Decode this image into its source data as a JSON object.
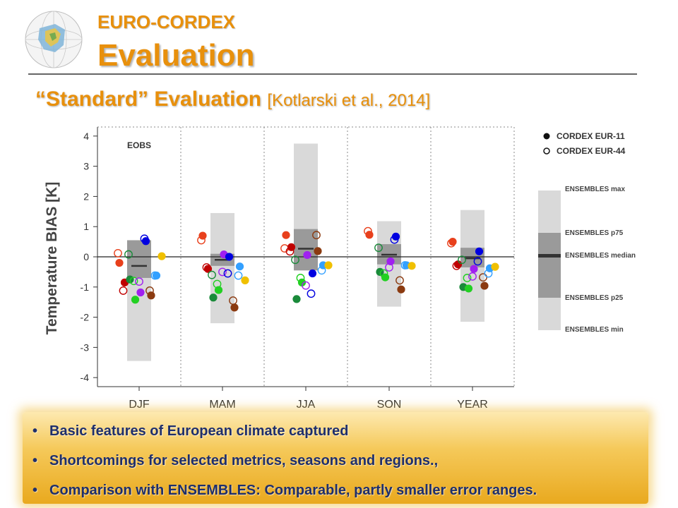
{
  "header": {
    "kicker": "EURO-CORDEX",
    "title": "Evaluation",
    "subtitle_main": "“Standard” Evaluation ",
    "subtitle_ref": "[Kotlarski et al., 2014]"
  },
  "legend": {
    "filled_label": "CORDEX EUR-11",
    "open_label": "CORDEX EUR-44",
    "ens_max": "ENSEMBLES max",
    "ens_p75": "ENSEMBLES p75",
    "ens_median": "ENSEMBLES median",
    "ens_p25": "ENSEMBLES p25",
    "ens_min": "ENSEMBLES min"
  },
  "bullets": {
    "items": [
      "Basic features of European climate captured",
      "Shortcomings for selected metrics, seasons and regions.,",
      "Comparison with ENSEMBLES: Comparable, partly smaller error ranges."
    ]
  },
  "colors": {
    "accent": "#e8900c",
    "bullet_text": "#1f2f6b",
    "ens_light": "#d9d9d9",
    "ens_dark": "#9a9a9a",
    "median": "#333333"
  },
  "chart_data": {
    "type": "scatter",
    "ylabel": "Temperature BIAS [K]",
    "inset_label": "EOBS",
    "ylim": [
      -4.3,
      4.3
    ],
    "yticks": [
      4,
      3,
      2,
      1,
      0,
      -1,
      -2,
      -3,
      -4
    ],
    "categories": [
      "DJF",
      "MAM",
      "JJA",
      "SON",
      "YEAR"
    ],
    "ensembles": [
      {
        "min": -3.45,
        "p25": -0.7,
        "median": -0.3,
        "p75": 0.55,
        "max": 0.55
      },
      {
        "min": -2.2,
        "p25": -0.3,
        "median": -0.1,
        "p75": 0.1,
        "max": 1.45
      },
      {
        "min": -0.45,
        "p25": -0.45,
        "median": 0.27,
        "p75": 0.92,
        "max": 3.75
      },
      {
        "min": -1.65,
        "p25": -0.25,
        "median": 0.07,
        "p75": 0.42,
        "max": 1.18
      },
      {
        "min": -2.15,
        "p25": -0.35,
        "median": -0.05,
        "p75": 0.3,
        "max": 1.55
      }
    ],
    "series": [
      {
        "color": "#e8401c",
        "eur11": [
          -0.2,
          0.7,
          0.72,
          0.73,
          0.5
        ],
        "eur44": [
          0.12,
          0.55,
          0.28,
          0.85,
          0.45
        ]
      },
      {
        "color": "#c00000",
        "eur11": [
          -0.85,
          -0.4,
          0.32,
          null,
          -0.25
        ],
        "eur44": [
          -1.12,
          -0.35,
          0.18,
          null,
          -0.3
        ]
      },
      {
        "color": "#1a8a3a",
        "eur11": [
          -0.75,
          -1.35,
          -1.4,
          -0.5,
          -1.0
        ],
        "eur44": [
          0.08,
          -0.6,
          -0.1,
          0.3,
          -0.1
        ]
      },
      {
        "color": "#22d022",
        "eur11": [
          -1.42,
          -1.1,
          -0.85,
          -0.68,
          -1.05
        ],
        "eur44": [
          -0.8,
          -0.9,
          -0.7,
          -0.55,
          -0.7
        ]
      },
      {
        "color": "#a020f0",
        "eur11": [
          -1.18,
          0.08,
          0.06,
          -0.15,
          -0.4
        ],
        "eur44": [
          -0.82,
          -0.5,
          -0.95,
          -0.35,
          -0.65
        ]
      },
      {
        "color": "#0000e0",
        "eur11": [
          0.52,
          0.0,
          -0.55,
          0.67,
          0.18
        ],
        "eur44": [
          0.6,
          -0.55,
          -1.22,
          0.57,
          -0.15
        ]
      },
      {
        "color": "#8b3a10",
        "eur11": [
          -1.28,
          -1.68,
          0.19,
          -1.08,
          -0.96
        ],
        "eur44": [
          -1.12,
          -1.45,
          0.72,
          -0.78,
          -0.68
        ]
      },
      {
        "color": "#33a0ff",
        "eur11": [
          -0.62,
          -0.32,
          -0.28,
          -0.28,
          -0.38
        ],
        "eur44": [
          -0.62,
          -0.62,
          -0.45,
          -0.28,
          -0.55
        ]
      },
      {
        "color": "#f0c000",
        "eur11": [
          0.02,
          -0.78,
          -0.28,
          -0.3,
          -0.33
        ],
        "eur44": [
          null,
          null,
          null,
          null,
          null
        ]
      }
    ]
  }
}
